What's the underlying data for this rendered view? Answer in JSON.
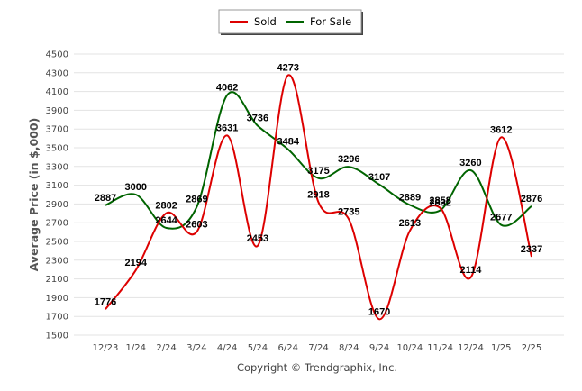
{
  "chart_data": {
    "type": "line",
    "categories": [
      "12/23",
      "1/24",
      "2/24",
      "3/24",
      "4/24",
      "5/24",
      "6/24",
      "7/24",
      "8/24",
      "9/24",
      "10/24",
      "11/24",
      "12/24",
      "1/25",
      "2/25"
    ],
    "series": [
      {
        "name": "Sold",
        "color": "#dd0000",
        "values": [
          1776,
          2194,
          2802,
          2603,
          3631,
          2453,
          4273,
          2918,
          2735,
          1670,
          2613,
          2858,
          2114,
          3612,
          2337
        ]
      },
      {
        "name": "For Sale",
        "color": "#006400",
        "values": [
          2887,
          3000,
          2644,
          2869,
          4062,
          3736,
          3484,
          3175,
          3296,
          3107,
          2889,
          2832,
          3260,
          2677,
          2876
        ]
      }
    ],
    "ylabel": "Average Price (in $,000)",
    "xlabel": "",
    "ylim": [
      1500,
      4500
    ],
    "yticks": [
      1500,
      1700,
      1900,
      2100,
      2300,
      2500,
      2700,
      2900,
      3100,
      3300,
      3500,
      3700,
      3900,
      4100,
      4300,
      4500
    ],
    "grid": true,
    "legend_position": "top-center"
  },
  "footer": {
    "copyright": "Copyright © Trendgraphix, Inc."
  }
}
